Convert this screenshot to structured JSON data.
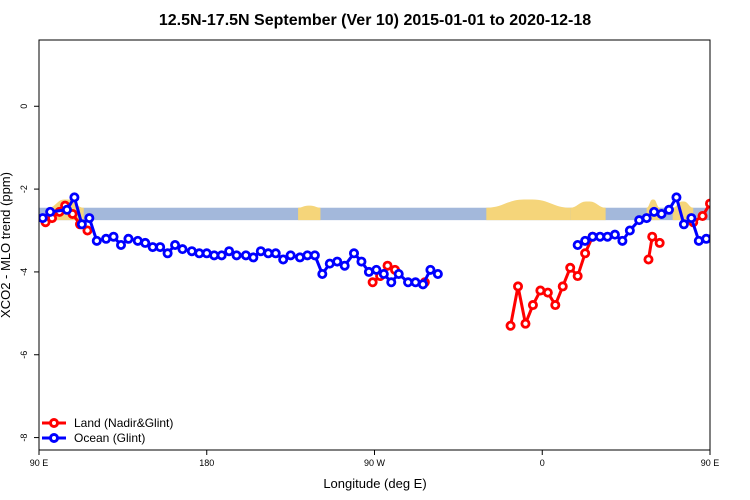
{
  "chart_data": {
    "type": "line",
    "title": "12.5N-17.5N September (Ver 10)   2015-01-01 to 2020-12-18",
    "xlabel": "Longitude (deg E)",
    "ylabel": "XCO2 - MLO trend (ppm)",
    "xlim": [
      90,
      450
    ],
    "ylim": [
      -8.3,
      1.6
    ],
    "x_ticks": [
      {
        "value": 90,
        "label": "90 E"
      },
      {
        "value": 180,
        "label": "180"
      },
      {
        "value": 270,
        "label": "90 W"
      },
      {
        "value": 360,
        "label": "0"
      },
      {
        "value": 450,
        "label": "90 E"
      },
      {
        "value": 540,
        "label": "180"
      }
    ],
    "y_ticks": [
      {
        "value": 0,
        "label": "0"
      },
      {
        "value": -2,
        "label": "-2"
      },
      {
        "value": -4,
        "label": "-4"
      },
      {
        "value": -6,
        "label": "-6"
      },
      {
        "value": -8,
        "label": "-8"
      }
    ],
    "grid": false,
    "legend_position": "bottom-left",
    "band": {
      "ymin": -2.75,
      "ymax": -2.45,
      "color": "#a3b8db",
      "land_color": "#f5d57a"
    },
    "land_bumps": [
      {
        "x": [
          95,
          114
        ],
        "top": -2.25
      },
      {
        "x": [
          229,
          241
        ],
        "top": -2.4
      },
      {
        "x": [
          330,
          375
        ],
        "top": -2.25
      },
      {
        "x": [
          375,
          394
        ],
        "top": -2.3
      },
      {
        "x": [
          416,
          423
        ],
        "top": -2.25
      },
      {
        "x": [
          430,
          441
        ],
        "top": -2.3
      }
    ],
    "series": [
      {
        "name": "Land (Nadir&Glint)",
        "color": "#ff0000",
        "segments": [
          [
            [
              93.5,
              -2.8
            ],
            [
              97,
              -2.7
            ],
            [
              101,
              -2.55
            ],
            [
              104,
              -2.4
            ],
            [
              108,
              -2.6
            ],
            [
              112,
              -2.85
            ],
            [
              116,
              -3.0
            ]
          ],
          [
            [
              269,
              -4.25
            ],
            [
              273,
              -4.1
            ],
            [
              277,
              -3.85
            ],
            [
              281,
              -3.95
            ]
          ],
          [
            [
              297,
              -4.25
            ]
          ],
          [
            [
              343,
              -5.3
            ],
            [
              347,
              -4.35
            ],
            [
              351,
              -5.25
            ],
            [
              355,
              -4.8
            ],
            [
              359,
              -4.45
            ],
            [
              363,
              -4.5
            ],
            [
              367,
              -4.8
            ],
            [
              371,
              -4.35
            ],
            [
              375,
              -3.9
            ],
            [
              379,
              -4.1
            ],
            [
              383,
              -3.55
            ],
            [
              387,
              -3.15
            ]
          ],
          [
            [
              417,
              -3.7
            ],
            [
              419,
              -3.15
            ],
            [
              423,
              -3.3
            ]
          ],
          [
            [
              441,
              -2.8
            ],
            [
              446,
              -2.65
            ],
            [
              450,
              -2.35
            ],
            [
              455,
              -2.75
            ],
            [
              459,
              -3.0
            ]
          ]
        ]
      },
      {
        "name": "Ocean (Glint)",
        "color": "#0000ff",
        "segments": [
          [
            [
              92,
              -2.7
            ],
            [
              96,
              -2.55
            ],
            [
              105,
              -2.5
            ],
            [
              109,
              -2.2
            ],
            [
              113,
              -2.85
            ],
            [
              117,
              -2.7
            ],
            [
              121,
              -3.25
            ],
            [
              126,
              -3.2
            ],
            [
              130,
              -3.15
            ],
            [
              134,
              -3.35
            ],
            [
              138,
              -3.2
            ],
            [
              143,
              -3.25
            ],
            [
              147,
              -3.3
            ],
            [
              151,
              -3.4
            ],
            [
              155,
              -3.4
            ],
            [
              159,
              -3.55
            ],
            [
              163,
              -3.35
            ],
            [
              167,
              -3.45
            ],
            [
              172,
              -3.5
            ],
            [
              176,
              -3.55
            ],
            [
              180,
              -3.55
            ],
            [
              184,
              -3.6
            ],
            [
              188,
              -3.6
            ],
            [
              192,
              -3.5
            ],
            [
              196,
              -3.6
            ],
            [
              201,
              -3.6
            ],
            [
              205,
              -3.65
            ],
            [
              209,
              -3.5
            ],
            [
              213,
              -3.55
            ],
            [
              217,
              -3.55
            ],
            [
              221,
              -3.7
            ],
            [
              225,
              -3.6
            ],
            [
              230,
              -3.65
            ],
            [
              234,
              -3.6
            ],
            [
              238,
              -3.6
            ],
            [
              242,
              -4.05
            ],
            [
              246,
              -3.8
            ],
            [
              250,
              -3.75
            ],
            [
              254,
              -3.85
            ],
            [
              259,
              -3.55
            ],
            [
              263,
              -3.75
            ],
            [
              267,
              -4.0
            ],
            [
              271,
              -3.95
            ],
            [
              275,
              -4.05
            ],
            [
              279,
              -4.25
            ],
            [
              283,
              -4.05
            ],
            [
              288,
              -4.25
            ],
            [
              292,
              -4.25
            ],
            [
              296,
              -4.3
            ],
            [
              300,
              -3.95
            ],
            [
              304,
              -4.05
            ]
          ],
          [
            [
              379,
              -3.35
            ],
            [
              383,
              -3.25
            ],
            [
              387,
              -3.15
            ],
            [
              391,
              -3.15
            ],
            [
              395,
              -3.15
            ],
            [
              399,
              -3.1
            ],
            [
              403,
              -3.25
            ],
            [
              407,
              -3.0
            ],
            [
              412,
              -2.75
            ],
            [
              416,
              -2.7
            ],
            [
              420,
              -2.55
            ],
            [
              424,
              -2.6
            ],
            [
              428,
              -2.5
            ],
            [
              432,
              -2.2
            ],
            [
              436,
              -2.85
            ],
            [
              440,
              -2.7
            ],
            [
              444,
              -3.25
            ],
            [
              448,
              -3.2
            ],
            [
              452,
              -3.15
            ],
            [
              456,
              -3.35
            ],
            [
              460,
              -3.2
            ],
            [
              465,
              -3.25
            ],
            [
              469,
              -3.3
            ],
            [
              473,
              -3.4
            ],
            [
              477,
              -3.4
            ],
            [
              481,
              -3.55
            ],
            [
              485,
              -3.35
            ]
          ]
        ]
      }
    ]
  }
}
